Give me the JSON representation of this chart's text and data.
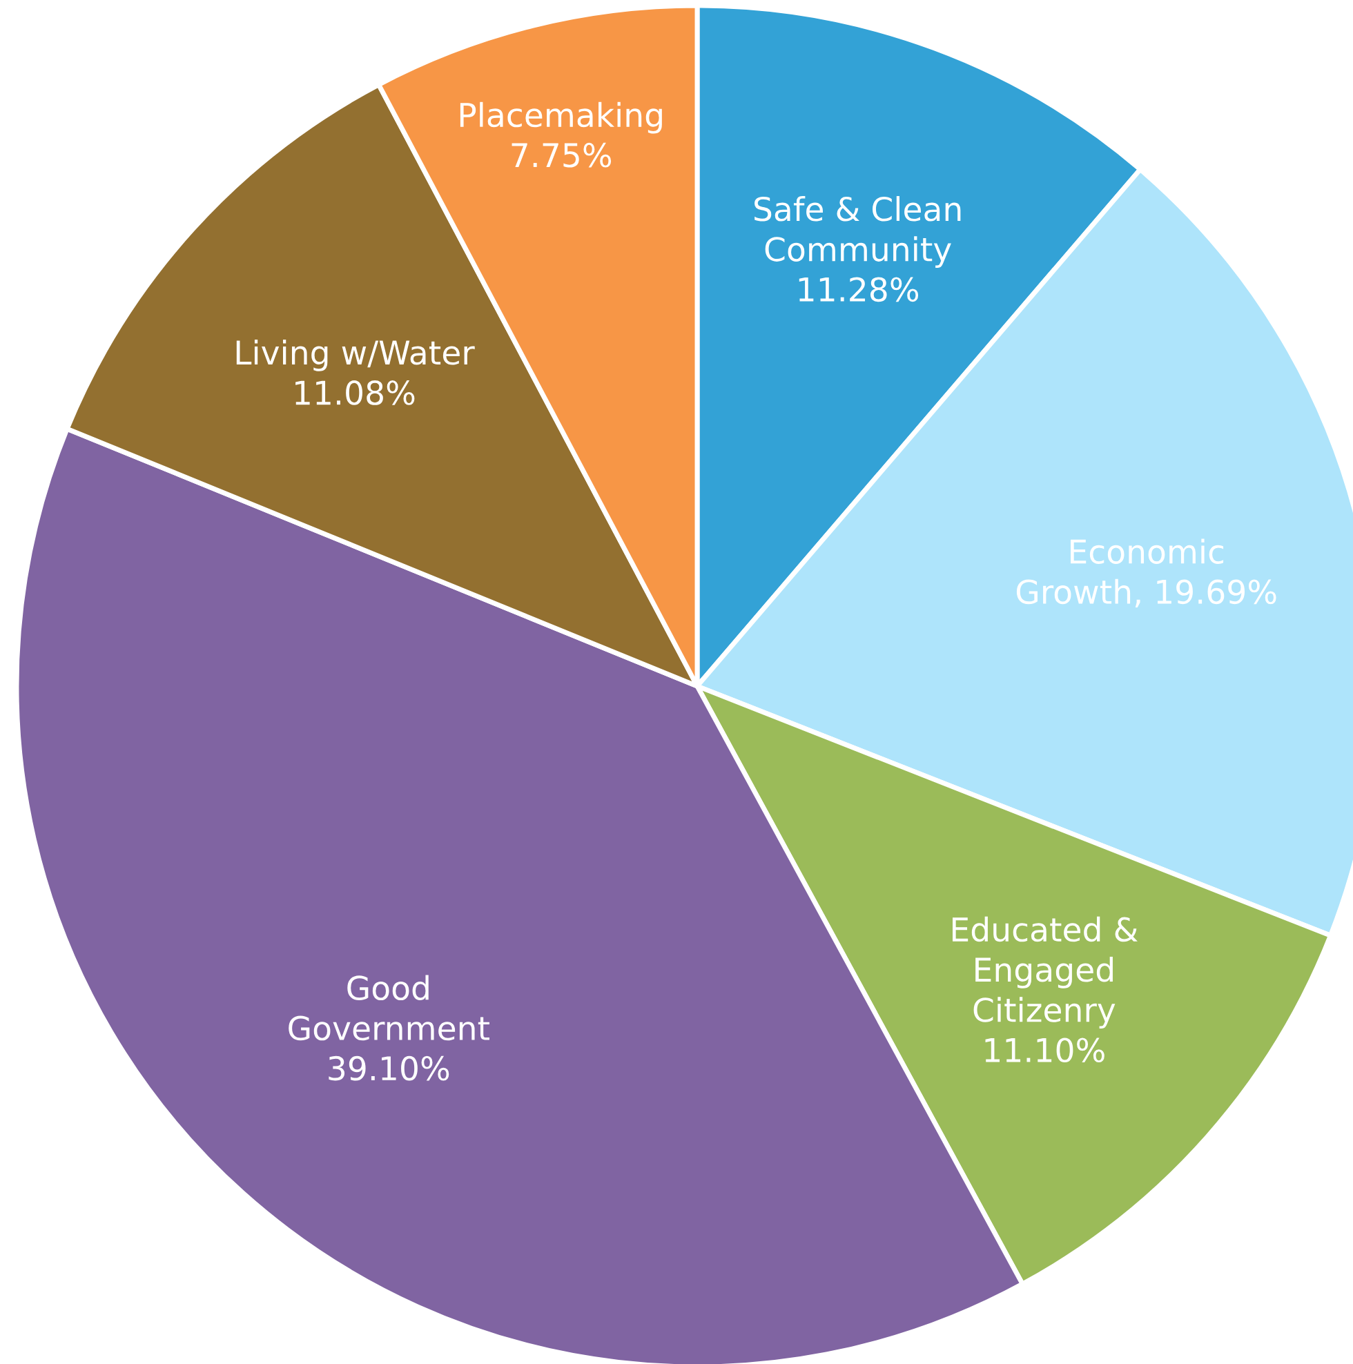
{
  "chart_data": {
    "type": "pie",
    "categories": [
      "Safe & Clean\nCommunity",
      "Economic\nGrowth",
      "Educated &\nEngaged\nCitizenry",
      "Good\nGovernment",
      "Living w/Water",
      "Placemaking"
    ],
    "values": [
      11.28,
      19.69,
      11.1,
      39.1,
      11.08,
      7.75
    ],
    "value_labels": [
      "11.28%",
      ", 19.69%",
      "11.10%",
      "39.10%",
      "11.08%",
      "7.75%"
    ],
    "colors": [
      "#33a2d6",
      "#aee4fb",
      "#9bbb59",
      "#8064a2",
      "#937030",
      "#f79646"
    ],
    "legend": false
  }
}
